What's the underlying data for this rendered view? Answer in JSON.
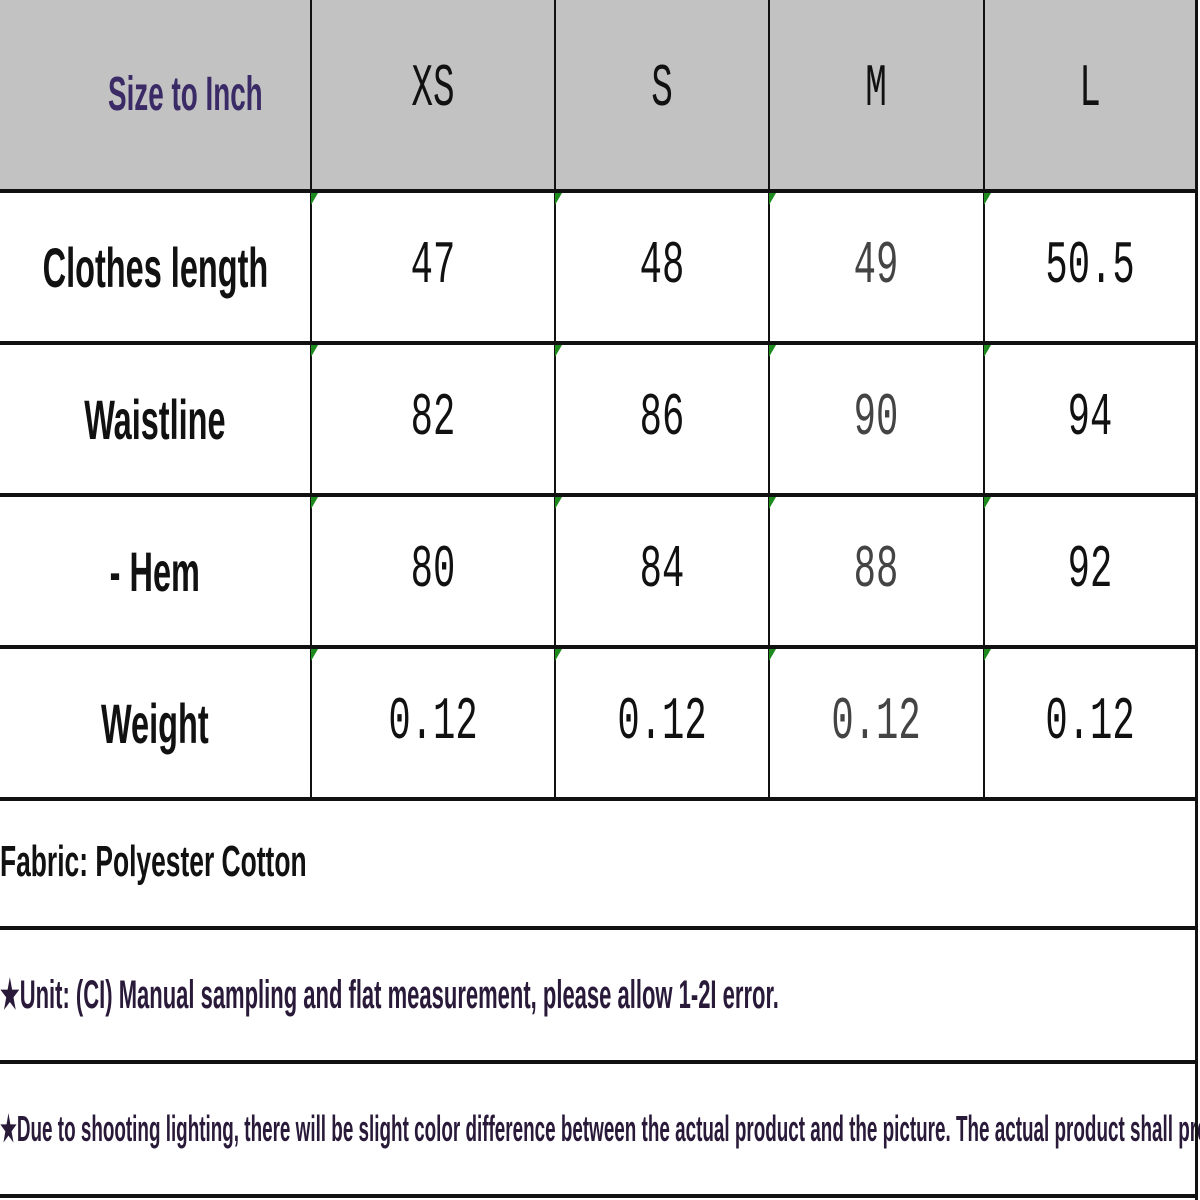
{
  "table": {
    "header": {
      "label": "Size to Inch",
      "sizes": [
        "XS",
        "S",
        "M",
        "L"
      ]
    },
    "rows": [
      {
        "label": "Clothes length",
        "values": [
          "47",
          "48",
          "49",
          "50.5"
        ]
      },
      {
        "label": "Waistline",
        "values": [
          "82",
          "86",
          "90",
          "94"
        ]
      },
      {
        "label": "- Hem",
        "values": [
          "80",
          "84",
          "88",
          "92"
        ]
      },
      {
        "label": "Weight",
        "values": [
          "0.12",
          "0.12",
          "0.12",
          "0.12"
        ]
      }
    ]
  },
  "notes": {
    "fabric": "Fabric: Polyester Cotton",
    "unit": "★Unit: (CI) Manual sampling and flat measurement, please allow 1-2I error.",
    "lighting": "★Due to shooting lighting, there will be slight color difference between the actual product and the picture. The actual product shall prevail."
  },
  "colors": {
    "header_bg": "#c2c2c2",
    "header_label": "#3a2a66",
    "cell_marker": "#1c8a1c"
  }
}
